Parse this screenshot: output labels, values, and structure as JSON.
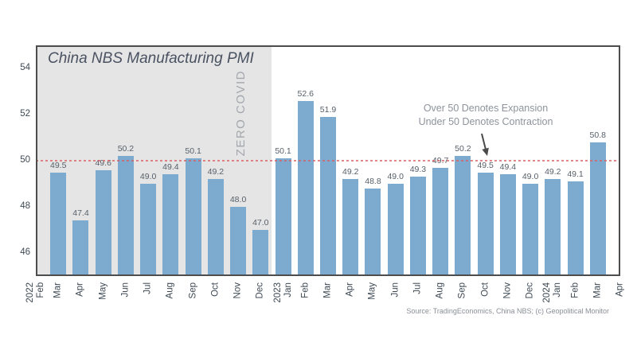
{
  "title": "China NBS Manufacturing PMI",
  "source": "Source: TradingEconomics, China NBS; (c) Geopolitical Monitor",
  "annotation": {
    "line1": "Over 50 Denotes Expansion",
    "line2": "Under 50 Denotes Contraction"
  },
  "shaded_label": "ZERO COVID",
  "colors": {
    "bar": "#7dabd0",
    "reference_line": "#d95f63",
    "shade": "#e5e5e5",
    "axis_border": "#4d4d4d",
    "title_text": "#4a5262",
    "annotation_text": "#8e939b",
    "arrow": "#4a4a4a"
  },
  "chart_data": {
    "type": "bar",
    "title": "China NBS Manufacturing PMI",
    "categories": [
      "Feb",
      "Mar",
      "Apr",
      "May",
      "Jun",
      "Jul",
      "Aug",
      "Sep",
      "Oct",
      "Nov",
      "Dec",
      "Jan",
      "Feb",
      "Mar",
      "Apr",
      "May",
      "Jun",
      "Jul",
      "Aug",
      "Sep",
      "Oct",
      "Nov",
      "Dec",
      "Jan",
      "Feb",
      "Mar",
      "Apr"
    ],
    "year_markers": {
      "0": "2022",
      "11": "2023",
      "23": "2024"
    },
    "values": [
      null,
      49.5,
      47.4,
      49.6,
      50.2,
      49.0,
      49.4,
      50.1,
      49.2,
      48.0,
      47.0,
      50.1,
      52.6,
      51.9,
      49.2,
      48.8,
      49.0,
      49.3,
      49.7,
      50.2,
      49.5,
      49.4,
      49.0,
      49.2,
      49.1,
      50.8,
      null
    ],
    "xlabel": "",
    "ylabel": "",
    "ylim": [
      45,
      55
    ],
    "yticks": [
      46,
      48,
      50,
      52,
      54
    ],
    "grid": false,
    "legend": null,
    "bar_color": "#7dabd0",
    "reference_line": {
      "value": 50,
      "style": "dashed",
      "color": "#d95f63"
    },
    "shaded_region": {
      "start_index": 0,
      "end_index": 10,
      "label": "ZERO COVID",
      "color": "#e5e5e5"
    },
    "annotations": [
      "Over 50 Denotes Expansion",
      "Under 50 Denotes Contraction"
    ]
  }
}
